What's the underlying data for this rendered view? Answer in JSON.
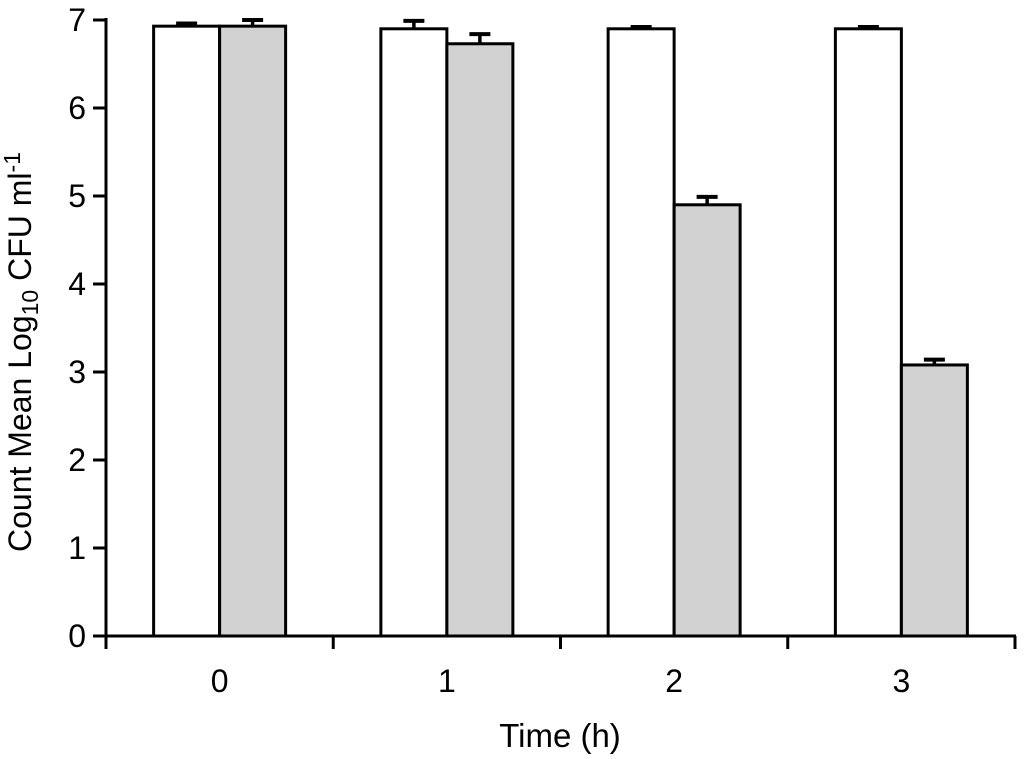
{
  "figure": {
    "background": "#ffffff",
    "foreground": "#000000"
  },
  "chart_data": {
    "type": "bar",
    "title": "",
    "xlabel": "Time (h)",
    "ylabel": "Count Mean Log10 CFU ml-1",
    "ylabel_parts": [
      {
        "t": "Count Mean Log",
        "script": "normal"
      },
      {
        "t": "10",
        "script": "sub"
      },
      {
        "t": " CFU ml",
        "script": "normal"
      },
      {
        "t": "-1",
        "script": "sup"
      }
    ],
    "categories": [
      "0",
      "1",
      "2",
      "3"
    ],
    "series": [
      {
        "name": "white-bars",
        "fill": "#ffffff",
        "values": [
          6.93,
          6.9,
          6.9,
          6.9
        ],
        "errors": [
          0.03,
          0.09,
          0.02,
          0.02
        ]
      },
      {
        "name": "grey-bars",
        "fill": "#d2d2d2",
        "values": [
          6.93,
          6.73,
          4.9,
          3.08
        ],
        "errors": [
          0.07,
          0.11,
          0.09,
          0.06
        ]
      }
    ],
    "ylim": [
      0,
      7
    ],
    "yticks": [
      0,
      1,
      2,
      3,
      4,
      5,
      6,
      7
    ],
    "grid": false,
    "legend": "none",
    "bar_outline": "#000000",
    "error_bar_color": "#000000"
  }
}
